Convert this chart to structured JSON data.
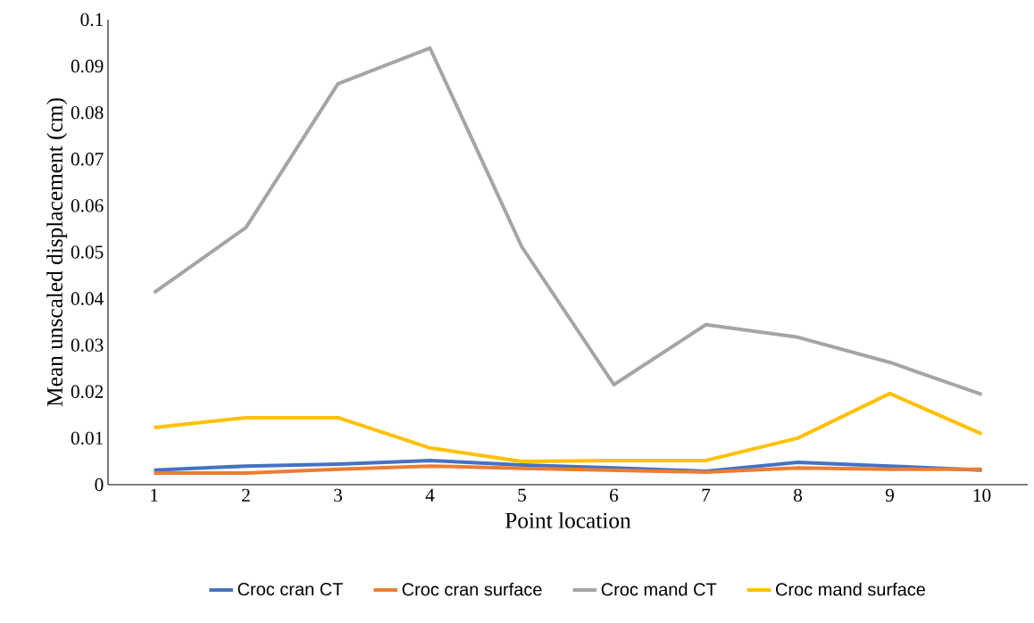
{
  "chart_data": {
    "type": "line",
    "xlabel": "Point location",
    "ylabel": "Mean unscaled displacement (cm)",
    "categories": [
      "1",
      "2",
      "3",
      "4",
      "5",
      "6",
      "7",
      "8",
      "9",
      "10"
    ],
    "series": [
      {
        "name": "Croc cran CT",
        "color": "#4472c4",
        "values": [
          0.0031,
          0.004,
          0.0044,
          0.0052,
          0.0042,
          0.0036,
          0.0029,
          0.0048,
          0.004,
          0.0031
        ]
      },
      {
        "name": "Croc cran surface",
        "color": "#ed7d31",
        "values": [
          0.0025,
          0.0025,
          0.0033,
          0.004,
          0.0035,
          0.0031,
          0.0027,
          0.0036,
          0.0033,
          0.0033
        ]
      },
      {
        "name": "Croc mand CT",
        "color": "#a5a5a5",
        "values": [
          0.0413,
          0.0553,
          0.0862,
          0.0939,
          0.0511,
          0.0215,
          0.0344,
          0.0317,
          0.0263,
          0.0194
        ]
      },
      {
        "name": "Croc mand surface",
        "color": "#ffc000",
        "values": [
          0.0123,
          0.0144,
          0.0144,
          0.0079,
          0.005,
          0.0052,
          0.0052,
          0.01,
          0.0196,
          0.0109
        ]
      }
    ],
    "ylim": [
      0,
      0.1
    ],
    "yticks": [
      0,
      0.01,
      0.02,
      0.03,
      0.04,
      0.05,
      0.06,
      0.07,
      0.08,
      0.09,
      0.1
    ],
    "legend": "bottom",
    "grid": false,
    "marker": "none",
    "line_style": "solid"
  }
}
